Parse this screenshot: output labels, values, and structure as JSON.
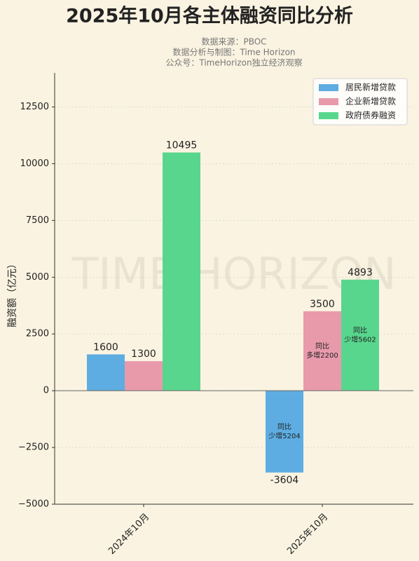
{
  "chart_data": {
    "type": "bar",
    "title": "2025年10月各主体融资同比分析",
    "subtitle": [
      "数据来源：PBOC",
      "数据分析与制图：Time Horizon",
      "公众号：TimeHorizon独立经济观察"
    ],
    "watermark": "TIME HORIZON",
    "ylabel": "融资额（亿元）",
    "categories": [
      "2024年10月",
      "2025年10月"
    ],
    "series": [
      {
        "name": "居民新增贷款",
        "color": "#5dade2",
        "values": [
          1600,
          -3604
        ],
        "annotations": [
          null,
          [
            "同比",
            "少增5204"
          ]
        ]
      },
      {
        "name": "企业新增贷款",
        "color": "#e89aab",
        "values": [
          1300,
          3500
        ],
        "annotations": [
          null,
          [
            "同比",
            "多增2200"
          ]
        ]
      },
      {
        "name": "政府债券融资",
        "color": "#58d68d",
        "values": [
          10495,
          4893
        ],
        "annotations": [
          null,
          [
            "同比",
            "少增5602"
          ]
        ]
      }
    ],
    "ylim": [
      -5000,
      14000
    ],
    "yticks": [
      {
        "value": -5000,
        "label": "−5000"
      },
      {
        "value": -2500,
        "label": "−2500"
      },
      0,
      2500,
      5000,
      7500,
      10000,
      12500
    ],
    "grid": true,
    "legend": "upper-right"
  }
}
